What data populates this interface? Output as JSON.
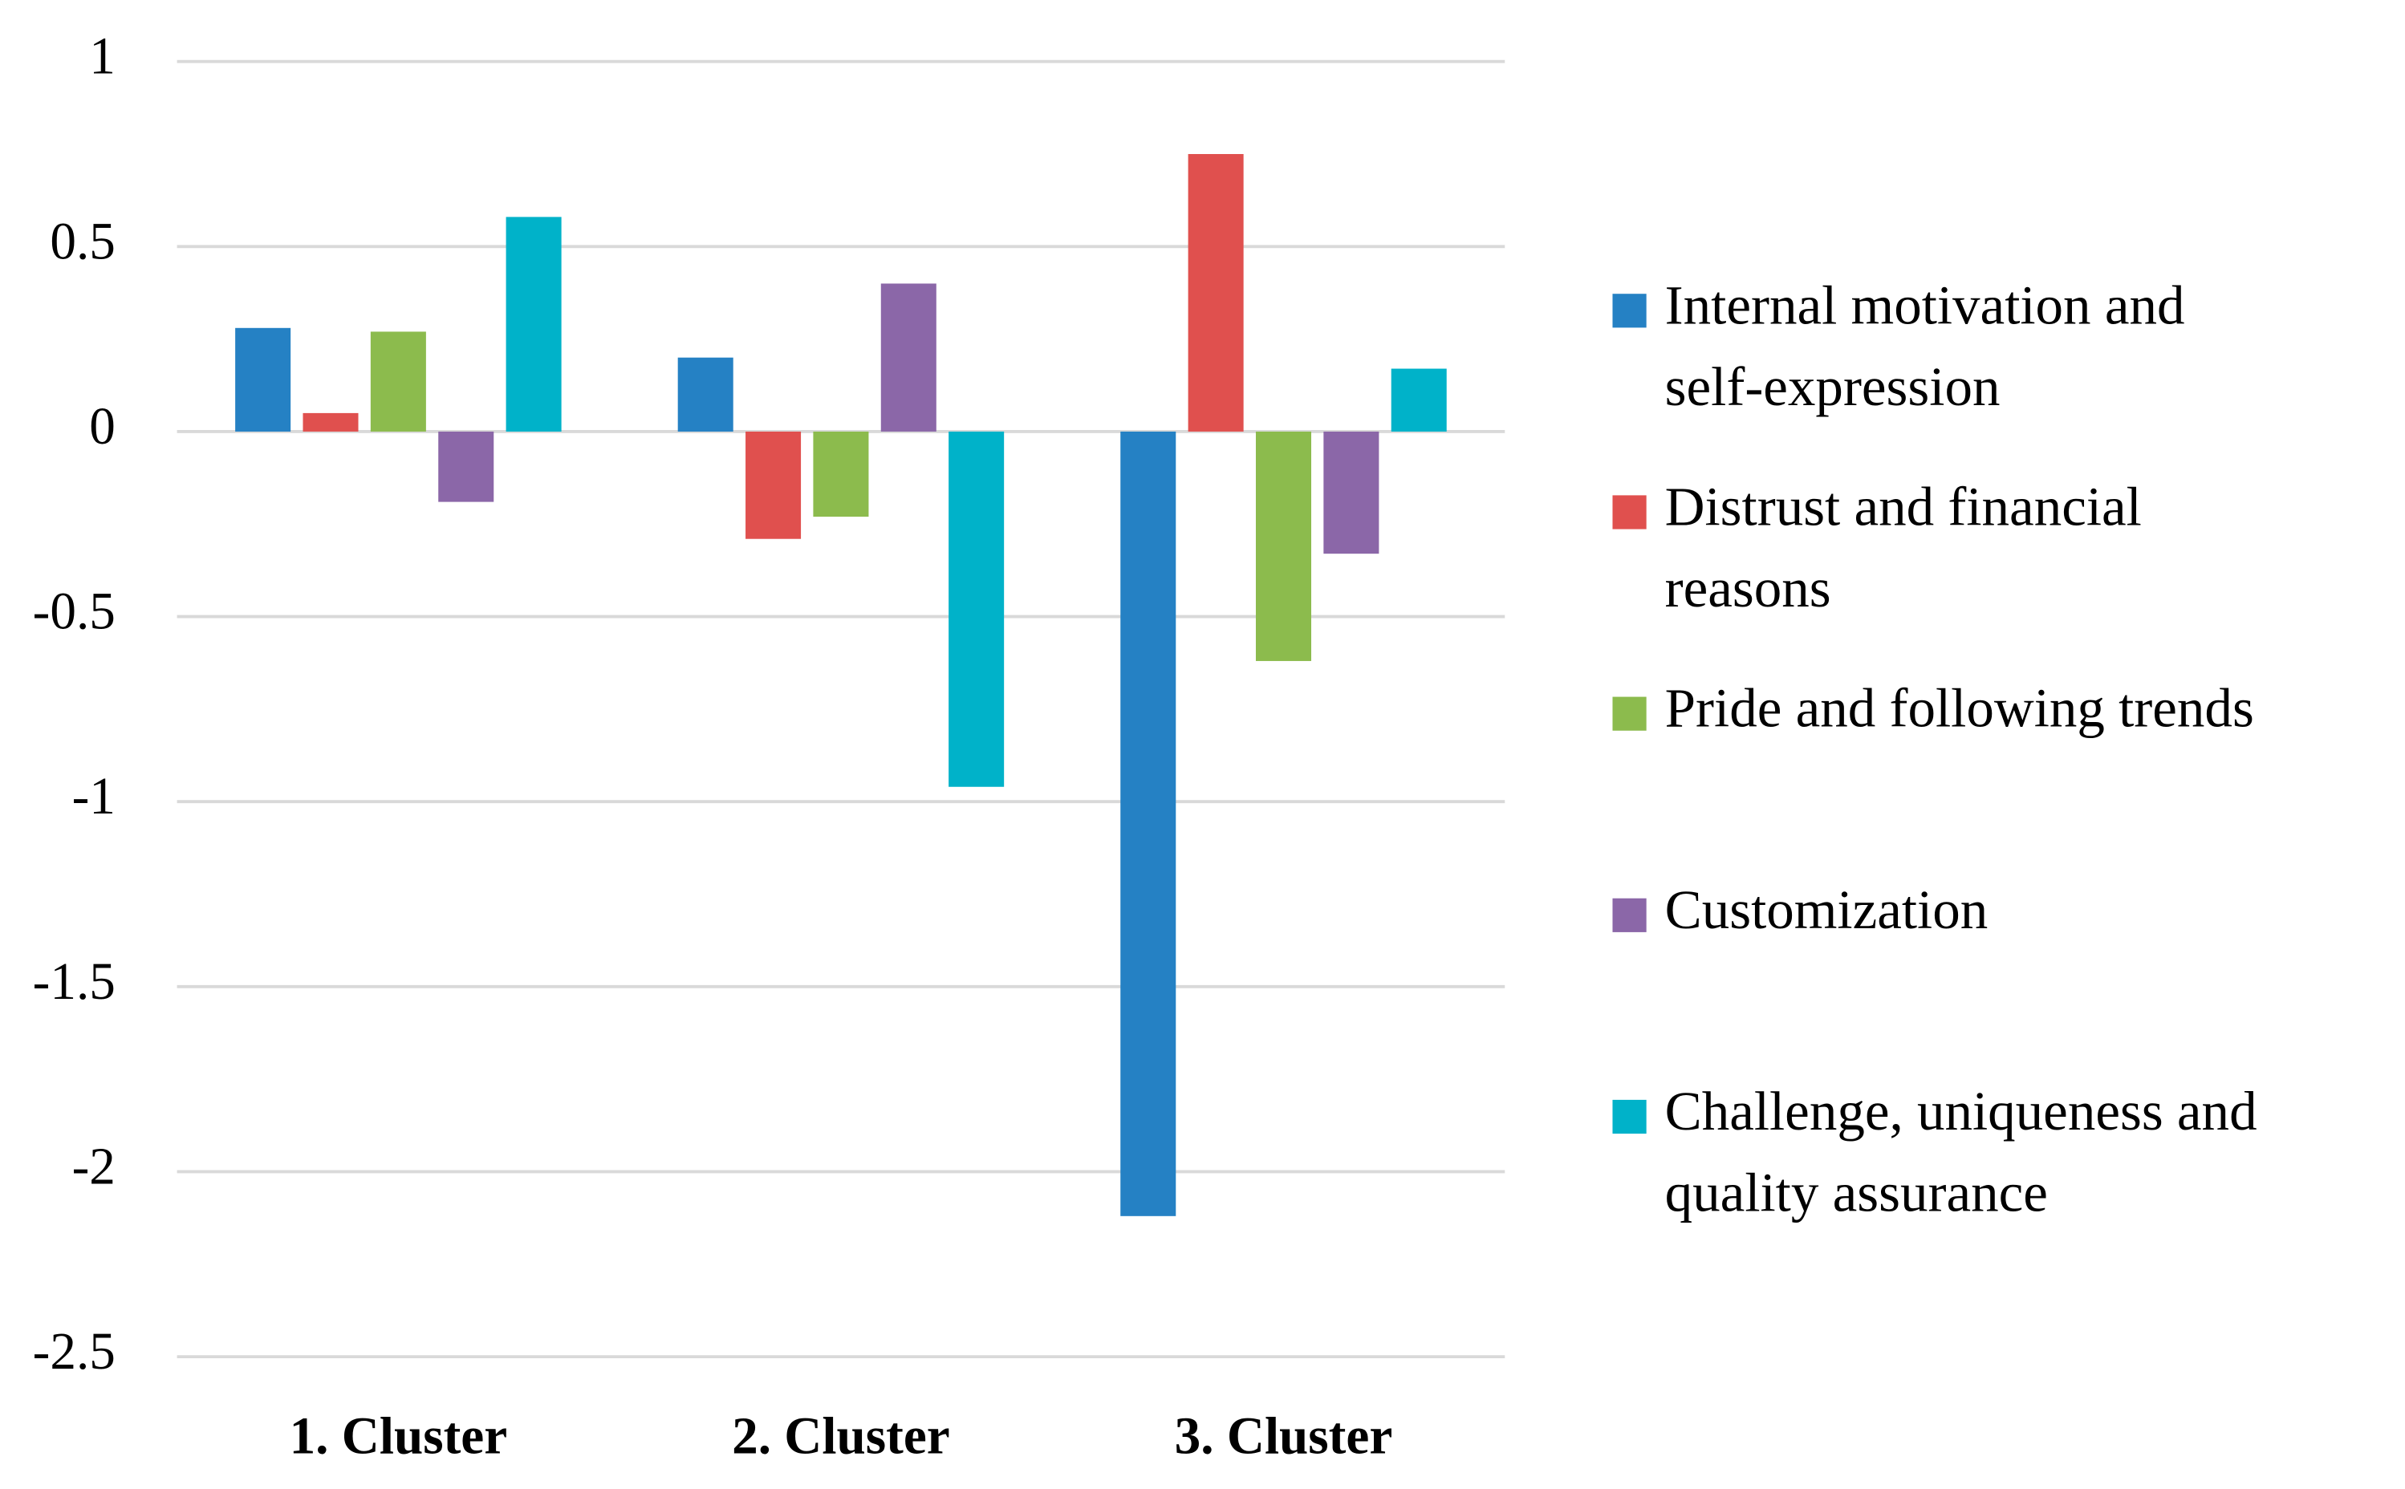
{
  "chart_data": {
    "type": "bar",
    "categories": [
      "1. Cluster",
      "2. Cluster",
      "3. Cluster"
    ],
    "series": [
      {
        "name": "Internal motivation and self-expression",
        "color": "#2581c4",
        "values": [
          0.28,
          0.2,
          -2.12
        ]
      },
      {
        "name": "Distrust and financial reasons",
        "color": "#e0504e",
        "values": [
          0.05,
          -0.29,
          0.75
        ]
      },
      {
        "name": "Pride and following trends",
        "color": "#8cbb4d",
        "values": [
          0.27,
          -0.23,
          -0.62
        ]
      },
      {
        "name": "Customization",
        "color": "#8b67a8",
        "values": [
          -0.19,
          0.4,
          -0.33
        ]
      },
      {
        "name": "Challenge, uniqueness and quality assurance",
        "color": "#00b2c9",
        "values": [
          0.58,
          -0.96,
          0.17
        ]
      }
    ],
    "ylim": [
      -2.5,
      1
    ],
    "yticks": [
      1,
      0.5,
      0,
      -0.5,
      -1,
      -1.5,
      -2,
      -2.5
    ],
    "grid": true,
    "legend": "right"
  }
}
